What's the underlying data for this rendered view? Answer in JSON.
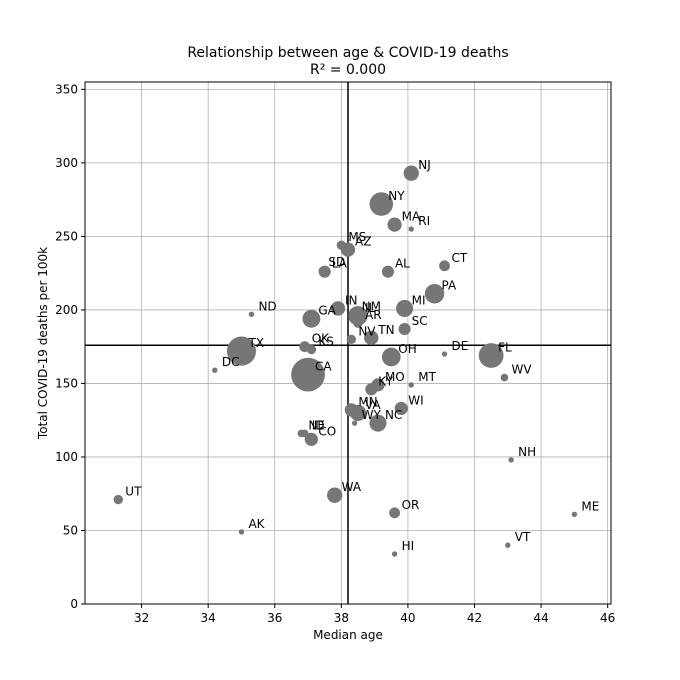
{
  "chart_data": {
    "type": "scatter",
    "title": "Relationship between age & COVID-19 deaths",
    "subtitle": "R² = 0.000",
    "xlabel": "Median age",
    "ylabel": "Total COVID-19 deaths per 100k",
    "xlim": [
      30.3,
      46.1
    ],
    "ylim": [
      0,
      355
    ],
    "xticks": [
      32,
      34,
      36,
      38,
      40,
      42,
      44,
      46
    ],
    "yticks": [
      0,
      50,
      100,
      150,
      200,
      250,
      300,
      350
    ],
    "grid": true,
    "reference_lines": {
      "x_mean": 38.2,
      "y_mean": 176
    },
    "color": "#767676",
    "points": [
      {
        "label": "NJ",
        "x": 40.1,
        "y": 293,
        "size": 8
      },
      {
        "label": "NY",
        "x": 39.2,
        "y": 272,
        "size": 19
      },
      {
        "label": "MA",
        "x": 39.6,
        "y": 258,
        "size": 7
      },
      {
        "label": "RI",
        "x": 40.1,
        "y": 255,
        "size": 1
      },
      {
        "label": "MS",
        "x": 38.0,
        "y": 244,
        "size": 3
      },
      {
        "label": "AZ",
        "x": 38.2,
        "y": 241,
        "size": 7
      },
      {
        "label": "SD",
        "x": 37.4,
        "y": 227,
        "size": 1
      },
      {
        "label": "LA",
        "x": 37.5,
        "y": 226,
        "size": 5
      },
      {
        "label": "AL",
        "x": 39.4,
        "y": 226,
        "size": 5
      },
      {
        "label": "CT",
        "x": 41.1,
        "y": 230,
        "size": 4
      },
      {
        "label": "PA",
        "x": 40.8,
        "y": 211,
        "size": 13
      },
      {
        "label": "ND",
        "x": 35.3,
        "y": 197,
        "size": 1
      },
      {
        "label": "IN",
        "x": 37.9,
        "y": 201,
        "size": 7
      },
      {
        "label": "GA",
        "x": 37.1,
        "y": 194,
        "size": 11
      },
      {
        "label": "NM",
        "x": 38.4,
        "y": 197,
        "size": 2
      },
      {
        "label": "IL",
        "x": 38.5,
        "y": 196,
        "size": 13
      },
      {
        "label": "AR",
        "x": 38.5,
        "y": 191,
        "size": 3
      },
      {
        "label": "MI",
        "x": 39.9,
        "y": 201,
        "size": 10
      },
      {
        "label": "SC",
        "x": 39.9,
        "y": 187,
        "size": 5
      },
      {
        "label": "NV",
        "x": 38.3,
        "y": 180,
        "size": 3
      },
      {
        "label": "TN",
        "x": 38.9,
        "y": 181,
        "size": 7
      },
      {
        "label": "OK",
        "x": 36.9,
        "y": 175,
        "size": 4
      },
      {
        "label": "KS",
        "x": 37.1,
        "y": 173,
        "size": 3
      },
      {
        "label": "TX",
        "x": 35.0,
        "y": 172,
        "size": 29
      },
      {
        "label": "DC",
        "x": 34.2,
        "y": 159,
        "size": 1
      },
      {
        "label": "OH",
        "x": 39.5,
        "y": 168,
        "size": 12
      },
      {
        "label": "DE",
        "x": 41.1,
        "y": 170,
        "size": 1
      },
      {
        "label": "FL",
        "x": 42.5,
        "y": 169,
        "size": 21
      },
      {
        "label": "CA",
        "x": 37.0,
        "y": 156,
        "size": 39
      },
      {
        "label": "WV",
        "x": 42.9,
        "y": 154,
        "size": 2
      },
      {
        "label": "KY",
        "x": 38.9,
        "y": 146,
        "size": 5
      },
      {
        "label": "MO",
        "x": 39.1,
        "y": 149,
        "size": 6
      },
      {
        "label": "MT",
        "x": 40.1,
        "y": 149,
        "size": 1
      },
      {
        "label": "WI",
        "x": 39.8,
        "y": 133,
        "size": 6
      },
      {
        "label": "MN",
        "x": 38.3,
        "y": 132,
        "size": 6
      },
      {
        "label": "VA",
        "x": 38.5,
        "y": 130,
        "size": 9
      },
      {
        "label": "WY",
        "x": 38.4,
        "y": 123,
        "size": 1
      },
      {
        "label": "NC",
        "x": 39.1,
        "y": 123,
        "size": 10
      },
      {
        "label": "NE",
        "x": 36.8,
        "y": 116,
        "size": 2
      },
      {
        "label": "ID",
        "x": 36.9,
        "y": 116,
        "size": 2
      },
      {
        "label": "CO",
        "x": 37.1,
        "y": 112,
        "size": 6
      },
      {
        "label": "NH",
        "x": 43.1,
        "y": 98,
        "size": 1
      },
      {
        "label": "UT",
        "x": 31.3,
        "y": 71,
        "size": 3
      },
      {
        "label": "WA",
        "x": 37.8,
        "y": 74,
        "size": 8
      },
      {
        "label": "OR",
        "x": 39.6,
        "y": 62,
        "size": 4
      },
      {
        "label": "ME",
        "x": 45.0,
        "y": 61,
        "size": 1
      },
      {
        "label": "AK",
        "x": 35.0,
        "y": 49,
        "size": 1
      },
      {
        "label": "VT",
        "x": 43.0,
        "y": 40,
        "size": 1
      },
      {
        "label": "HI",
        "x": 39.6,
        "y": 34,
        "size": 1
      }
    ]
  }
}
